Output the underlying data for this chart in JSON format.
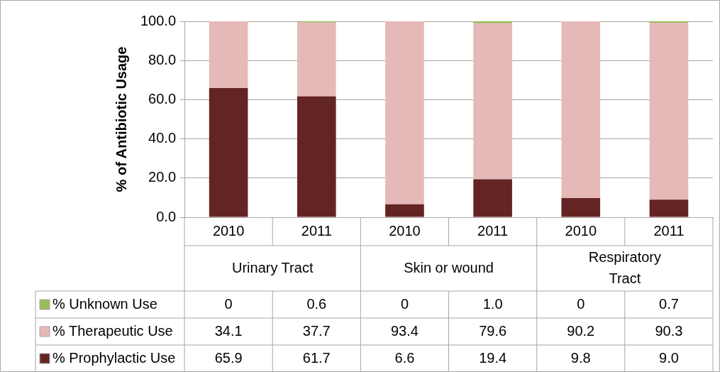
{
  "chart_data": {
    "type": "bar",
    "stacked": true,
    "ylabel": "% of Antibiotic Usage",
    "categories": [
      "2010",
      "2011",
      "2010",
      "2011",
      "2010",
      "2011"
    ],
    "annotations": [
      "Urinary Tract",
      "Skin or wound",
      "Respiratory Tract"
    ],
    "series": [
      {
        "name": "% Prophylactic Use",
        "color": "#632523",
        "values": [
          65.9,
          61.7,
          6.6,
          19.4,
          9.8,
          9.0
        ],
        "value_labels": [
          "65.9",
          "61.7",
          "6.6",
          "19.4",
          "9.8",
          "9.0"
        ]
      },
      {
        "name": "% Therapeutic Use",
        "color": "#e6b9b8",
        "values": [
          34.1,
          37.7,
          93.4,
          79.6,
          90.2,
          90.3
        ],
        "value_labels": [
          "34.1",
          "37.7",
          "93.4",
          "79.6",
          "90.2",
          "90.3"
        ]
      },
      {
        "name": "% Unknown Use",
        "color": "#9bbb59",
        "values": [
          0,
          0.6,
          0,
          1.0,
          0,
          0.7
        ],
        "value_labels": [
          "0",
          "0.6",
          "0",
          "1.0",
          "0",
          "0.7"
        ]
      }
    ],
    "ylim": [
      0,
      100
    ],
    "yticks": [
      {
        "value": 0,
        "label": "0.0"
      },
      {
        "value": 20,
        "label": "20.0"
      },
      {
        "value": 40,
        "label": "40.0"
      },
      {
        "value": 60,
        "label": "60.0"
      },
      {
        "value": 80,
        "label": "80.0"
      },
      {
        "value": 100,
        "label": "100.0"
      }
    ],
    "grid": "y",
    "legend": "bottom"
  }
}
